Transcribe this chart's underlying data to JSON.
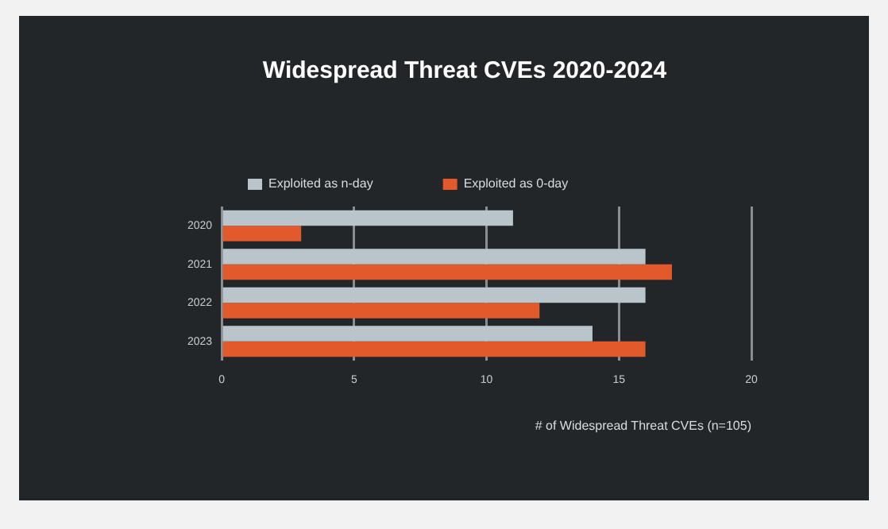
{
  "chart_data": {
    "type": "bar",
    "orientation": "horizontal",
    "title": "Widespread Threat CVEs 2020-2024",
    "xlabel": "# of Widespread Threat CVEs (n=105)",
    "categories": [
      "2020",
      "2021",
      "2022",
      "2023"
    ],
    "series": [
      {
        "name": "Exploited as n-day",
        "color": "#b9c5cb",
        "values": [
          11,
          16,
          16,
          14
        ]
      },
      {
        "name": "Exploited as 0-day",
        "color": "#e2592b",
        "values": [
          3,
          17,
          12,
          16
        ]
      }
    ],
    "xlim": [
      0,
      20
    ],
    "xticks": [
      0,
      5,
      10,
      15,
      20
    ],
    "grid": "x",
    "legend": "top left"
  }
}
